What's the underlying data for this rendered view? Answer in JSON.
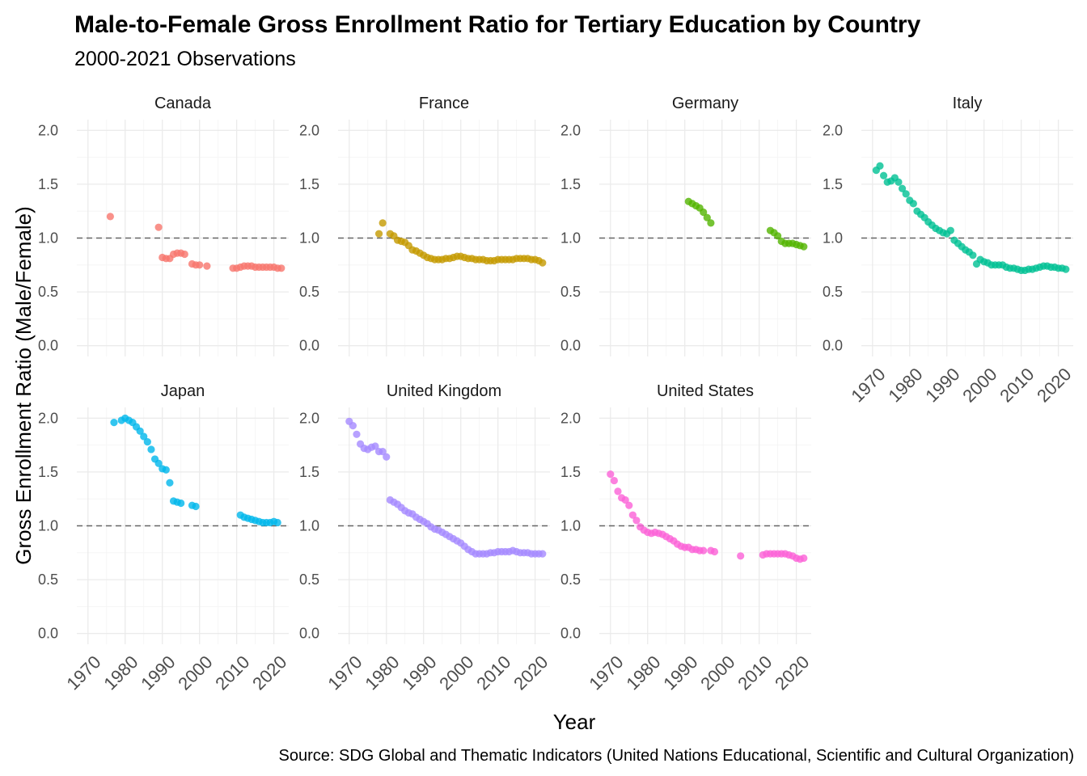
{
  "chart_data": {
    "type": "scatter",
    "title": "Male-to-Female Gross Enrollment Ratio for Tertiary Education by Country",
    "subtitle": "2000-2021 Observations",
    "xlabel": "Year",
    "ylabel": "Gross Enrollment Ratio (Male/Female)",
    "caption": "Source: SDG Global and Thematic Indicators (United Nations Educational, Scientific and Cultural Organization)",
    "xlim": [
      1967,
      2024
    ],
    "ylim": [
      -0.1,
      2.1
    ],
    "x_ticks": [
      "1970",
      "1980",
      "1990",
      "2000",
      "2010",
      "2020"
    ],
    "y_ticks": [
      "0.0",
      "0.5",
      "1.0",
      "1.5",
      "2.0"
    ],
    "reference_line": 1.0,
    "panels": [
      {
        "name": "Canada",
        "color": "#F8766D",
        "x": [
          1976,
          1989,
          1990,
          1991,
          1992,
          1993,
          1994,
          1995,
          1996,
          1998,
          1999,
          2000,
          2002,
          2009,
          2010,
          2011,
          2012,
          2013,
          2014,
          2015,
          2016,
          2017,
          2018,
          2019,
          2020,
          2021,
          2022
        ],
        "y": [
          1.2,
          1.1,
          0.82,
          0.81,
          0.81,
          0.85,
          0.86,
          0.86,
          0.85,
          0.76,
          0.75,
          0.75,
          0.74,
          0.72,
          0.72,
          0.73,
          0.74,
          0.74,
          0.74,
          0.73,
          0.73,
          0.73,
          0.73,
          0.73,
          0.73,
          0.72,
          0.72
        ]
      },
      {
        "name": "France",
        "color": "#C49A00",
        "x": [
          1978,
          1979,
          1981,
          1982,
          1983,
          1984,
          1985,
          1986,
          1987,
          1988,
          1989,
          1990,
          1991,
          1992,
          1993,
          1994,
          1995,
          1996,
          1997,
          1998,
          1999,
          2000,
          2001,
          2002,
          2003,
          2004,
          2005,
          2006,
          2007,
          2008,
          2009,
          2010,
          2011,
          2012,
          2013,
          2014,
          2015,
          2016,
          2017,
          2018,
          2019,
          2020,
          2021,
          2022
        ],
        "y": [
          1.04,
          1.14,
          1.04,
          1.02,
          0.98,
          0.97,
          0.96,
          0.93,
          0.89,
          0.88,
          0.86,
          0.84,
          0.82,
          0.81,
          0.8,
          0.8,
          0.8,
          0.81,
          0.81,
          0.82,
          0.83,
          0.83,
          0.82,
          0.81,
          0.81,
          0.8,
          0.8,
          0.8,
          0.79,
          0.79,
          0.79,
          0.8,
          0.8,
          0.8,
          0.8,
          0.8,
          0.81,
          0.81,
          0.81,
          0.81,
          0.8,
          0.8,
          0.79,
          0.77
        ]
      },
      {
        "name": "Germany",
        "color": "#53B400",
        "x": [
          1991,
          1992,
          1993,
          1994,
          1995,
          1996,
          1997,
          2013,
          2014,
          2015,
          2016,
          2017,
          2018,
          2019,
          2020,
          2021,
          2022
        ],
        "y": [
          1.34,
          1.32,
          1.3,
          1.28,
          1.24,
          1.19,
          1.14,
          1.07,
          1.05,
          1.02,
          0.97,
          0.95,
          0.95,
          0.95,
          0.94,
          0.93,
          0.92
        ]
      },
      {
        "name": "Italy",
        "color": "#00C094",
        "x": [
          1971,
          1972,
          1973,
          1974,
          1975,
          1976,
          1977,
          1978,
          1979,
          1980,
          1981,
          1982,
          1983,
          1984,
          1985,
          1986,
          1987,
          1988,
          1989,
          1990,
          1991,
          1992,
          1993,
          1994,
          1995,
          1996,
          1997,
          1998,
          1999,
          2000,
          2001,
          2002,
          2003,
          2004,
          2005,
          2006,
          2007,
          2008,
          2009,
          2010,
          2011,
          2012,
          2013,
          2014,
          2015,
          2016,
          2017,
          2018,
          2019,
          2020,
          2021,
          2022
        ],
        "y": [
          1.63,
          1.67,
          1.58,
          1.52,
          1.53,
          1.56,
          1.52,
          1.46,
          1.41,
          1.35,
          1.32,
          1.25,
          1.22,
          1.19,
          1.15,
          1.12,
          1.09,
          1.07,
          1.05,
          1.04,
          1.07,
          0.98,
          0.95,
          0.92,
          0.89,
          0.87,
          0.84,
          0.76,
          0.8,
          0.78,
          0.77,
          0.75,
          0.75,
          0.75,
          0.75,
          0.73,
          0.72,
          0.72,
          0.71,
          0.7,
          0.7,
          0.71,
          0.71,
          0.72,
          0.73,
          0.74,
          0.74,
          0.73,
          0.73,
          0.72,
          0.72,
          0.71
        ]
      },
      {
        "name": "Japan",
        "color": "#00B6EB",
        "x": [
          1977,
          1979,
          1980,
          1981,
          1982,
          1983,
          1984,
          1985,
          1986,
          1987,
          1988,
          1989,
          1990,
          1991,
          1992,
          1993,
          1994,
          1995,
          1998,
          1999,
          2011,
          2012,
          2013,
          2014,
          2015,
          2016,
          2017,
          2018,
          2019,
          2020,
          2021
        ],
        "y": [
          1.96,
          1.98,
          2.0,
          1.98,
          1.96,
          1.92,
          1.88,
          1.83,
          1.78,
          1.71,
          1.62,
          1.58,
          1.53,
          1.52,
          1.4,
          1.23,
          1.22,
          1.21,
          1.19,
          1.18,
          1.1,
          1.08,
          1.07,
          1.06,
          1.05,
          1.04,
          1.03,
          1.03,
          1.03,
          1.04,
          1.03
        ]
      },
      {
        "name": "United Kingdom",
        "color": "#A58AFF",
        "x": [
          1970,
          1971,
          1972,
          1973,
          1974,
          1975,
          1976,
          1977,
          1978,
          1979,
          1980,
          1981,
          1982,
          1983,
          1984,
          1985,
          1986,
          1987,
          1988,
          1989,
          1990,
          1991,
          1992,
          1993,
          1994,
          1995,
          1996,
          1997,
          1998,
          1999,
          2000,
          2001,
          2002,
          2003,
          2004,
          2005,
          2006,
          2007,
          2008,
          2009,
          2010,
          2011,
          2012,
          2013,
          2014,
          2015,
          2016,
          2017,
          2018,
          2019,
          2020,
          2021,
          2022
        ],
        "y": [
          1.97,
          1.93,
          1.85,
          1.76,
          1.72,
          1.71,
          1.73,
          1.74,
          1.69,
          1.69,
          1.64,
          1.24,
          1.22,
          1.2,
          1.17,
          1.14,
          1.12,
          1.11,
          1.08,
          1.06,
          1.04,
          1.02,
          0.99,
          0.97,
          0.96,
          0.94,
          0.92,
          0.9,
          0.88,
          0.86,
          0.84,
          0.81,
          0.78,
          0.76,
          0.74,
          0.74,
          0.74,
          0.74,
          0.75,
          0.75,
          0.76,
          0.76,
          0.76,
          0.76,
          0.77,
          0.76,
          0.75,
          0.75,
          0.75,
          0.74,
          0.74,
          0.74,
          0.74
        ]
      },
      {
        "name": "United States",
        "color": "#FB61D7",
        "x": [
          1970,
          1971,
          1972,
          1973,
          1974,
          1975,
          1976,
          1977,
          1978,
          1979,
          1980,
          1981,
          1982,
          1983,
          1984,
          1985,
          1986,
          1987,
          1988,
          1989,
          1990,
          1991,
          1992,
          1993,
          1994,
          1995,
          1997,
          1998,
          2005,
          2011,
          2012,
          2013,
          2014,
          2015,
          2016,
          2017,
          2018,
          2019,
          2020,
          2021,
          2022
        ],
        "y": [
          1.48,
          1.42,
          1.32,
          1.26,
          1.24,
          1.19,
          1.1,
          1.05,
          0.99,
          0.96,
          0.94,
          0.93,
          0.94,
          0.93,
          0.92,
          0.9,
          0.88,
          0.86,
          0.83,
          0.81,
          0.8,
          0.8,
          0.78,
          0.78,
          0.77,
          0.77,
          0.77,
          0.76,
          0.72,
          0.73,
          0.74,
          0.74,
          0.74,
          0.74,
          0.74,
          0.74,
          0.73,
          0.72,
          0.7,
          0.69,
          0.7
        ]
      }
    ]
  }
}
